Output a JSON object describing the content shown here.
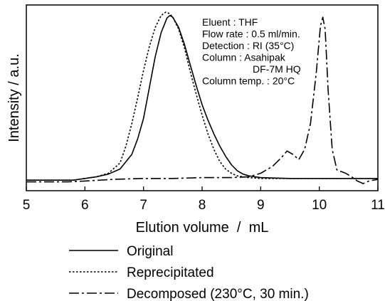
{
  "chart_data": {
    "type": "line",
    "xlabel": "Elution volume  /  mL",
    "ylabel": "Intensity / a.u.",
    "xlim": [
      5,
      11
    ],
    "ylim": [
      0,
      1
    ],
    "x_ticks": [
      5,
      6,
      7,
      8,
      9,
      10,
      11
    ],
    "y_ticks": [],
    "annotation_lines": [
      "Eluent : THF",
      "Flow rate : 0.5 ml/min.",
      "Detection : RI (35°C)",
      "Column : Asahipak",
      "DF-7M HQ",
      "Column temp. : 20°C"
    ],
    "legend_position": "bottom",
    "series": [
      {
        "name": "Original",
        "line_style": "solid",
        "color": "#000000",
        "points": [
          [
            5.0,
            0.02
          ],
          [
            5.8,
            0.02
          ],
          [
            6.0,
            0.03
          ],
          [
            6.2,
            0.04
          ],
          [
            6.4,
            0.055
          ],
          [
            6.6,
            0.085
          ],
          [
            6.8,
            0.17
          ],
          [
            6.9,
            0.26
          ],
          [
            7.0,
            0.38
          ],
          [
            7.1,
            0.56
          ],
          [
            7.2,
            0.74
          ],
          [
            7.3,
            0.88
          ],
          [
            7.4,
            0.965
          ],
          [
            7.45,
            0.98
          ],
          [
            7.5,
            0.97
          ],
          [
            7.6,
            0.91
          ],
          [
            7.7,
            0.81
          ],
          [
            7.8,
            0.69
          ],
          [
            7.9,
            0.57
          ],
          [
            8.0,
            0.46
          ],
          [
            8.1,
            0.37
          ],
          [
            8.2,
            0.29
          ],
          [
            8.3,
            0.22
          ],
          [
            8.4,
            0.16
          ],
          [
            8.5,
            0.11
          ],
          [
            8.6,
            0.075
          ],
          [
            8.7,
            0.055
          ],
          [
            8.8,
            0.045
          ],
          [
            8.9,
            0.04
          ],
          [
            9.0,
            0.035
          ],
          [
            9.5,
            0.03
          ],
          [
            10.0,
            0.03
          ],
          [
            11.0,
            0.03
          ]
        ]
      },
      {
        "name": "Reprecipitated",
        "line_style": "dotted",
        "color": "#000000",
        "points": [
          [
            5.0,
            0.02
          ],
          [
            5.8,
            0.02
          ],
          [
            6.0,
            0.03
          ],
          [
            6.2,
            0.04
          ],
          [
            6.4,
            0.06
          ],
          [
            6.6,
            0.12
          ],
          [
            6.7,
            0.22
          ],
          [
            6.8,
            0.35
          ],
          [
            6.9,
            0.5
          ],
          [
            7.0,
            0.66
          ],
          [
            7.1,
            0.8
          ],
          [
            7.2,
            0.91
          ],
          [
            7.3,
            0.98
          ],
          [
            7.38,
            1.0
          ],
          [
            7.45,
            0.99
          ],
          [
            7.5,
            0.97
          ],
          [
            7.6,
            0.9
          ],
          [
            7.7,
            0.79
          ],
          [
            7.8,
            0.65
          ],
          [
            7.9,
            0.52
          ],
          [
            8.0,
            0.4
          ],
          [
            8.1,
            0.29
          ],
          [
            8.2,
            0.2
          ],
          [
            8.3,
            0.13
          ],
          [
            8.4,
            0.085
          ],
          [
            8.5,
            0.06
          ],
          [
            8.6,
            0.045
          ],
          [
            8.8,
            0.035
          ],
          [
            9.0,
            0.03
          ],
          [
            10.0,
            0.03
          ],
          [
            11.0,
            0.03
          ]
        ]
      },
      {
        "name": "Decomposed (230°C, 30 min.)",
        "line_style": "dashdot",
        "color": "#000000",
        "points": [
          [
            5.0,
            0.01
          ],
          [
            5.7,
            0.01
          ],
          [
            6.0,
            0.015
          ],
          [
            6.5,
            0.025
          ],
          [
            7.0,
            0.03
          ],
          [
            7.5,
            0.03
          ],
          [
            8.0,
            0.035
          ],
          [
            8.5,
            0.035
          ],
          [
            8.8,
            0.04
          ],
          [
            9.0,
            0.06
          ],
          [
            9.2,
            0.1
          ],
          [
            9.35,
            0.15
          ],
          [
            9.45,
            0.19
          ],
          [
            9.55,
            0.17
          ],
          [
            9.65,
            0.14
          ],
          [
            9.75,
            0.2
          ],
          [
            9.85,
            0.35
          ],
          [
            9.95,
            0.65
          ],
          [
            10.02,
            0.92
          ],
          [
            10.06,
            0.97
          ],
          [
            10.1,
            0.9
          ],
          [
            10.15,
            0.55
          ],
          [
            10.22,
            0.2
          ],
          [
            10.3,
            0.08
          ],
          [
            10.45,
            0.06
          ],
          [
            10.55,
            0.04
          ],
          [
            10.65,
            0.015
          ],
          [
            10.75,
            0.0
          ],
          [
            10.85,
            0.015
          ],
          [
            11.0,
            0.025
          ]
        ]
      }
    ]
  }
}
